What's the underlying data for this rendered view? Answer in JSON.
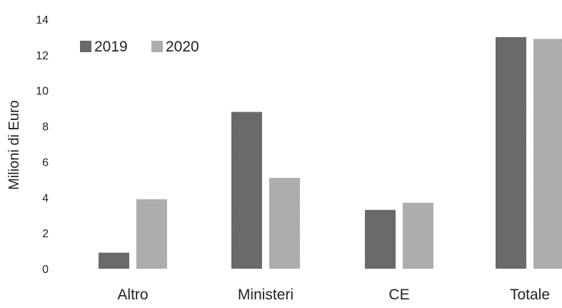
{
  "chart_data": {
    "type": "bar",
    "title": "",
    "xlabel": "",
    "ylabel": "Milioni di Euro",
    "categories": [
      "Altro",
      "Ministeri",
      "CE",
      "Totale"
    ],
    "series": [
      {
        "name": "2019",
        "color": "#6e6e6e",
        "values": [
          0.9,
          8.8,
          3.3,
          13.0
        ]
      },
      {
        "name": "2020",
        "color": "#b4b4b4",
        "values": [
          3.9,
          5.1,
          3.7,
          12.9
        ]
      }
    ],
    "ylim": [
      0,
      14
    ],
    "yticks": [
      "0",
      "2",
      "4",
      "6",
      "8",
      "10",
      "12",
      "14"
    ],
    "grid": false,
    "legend": "top-left"
  }
}
